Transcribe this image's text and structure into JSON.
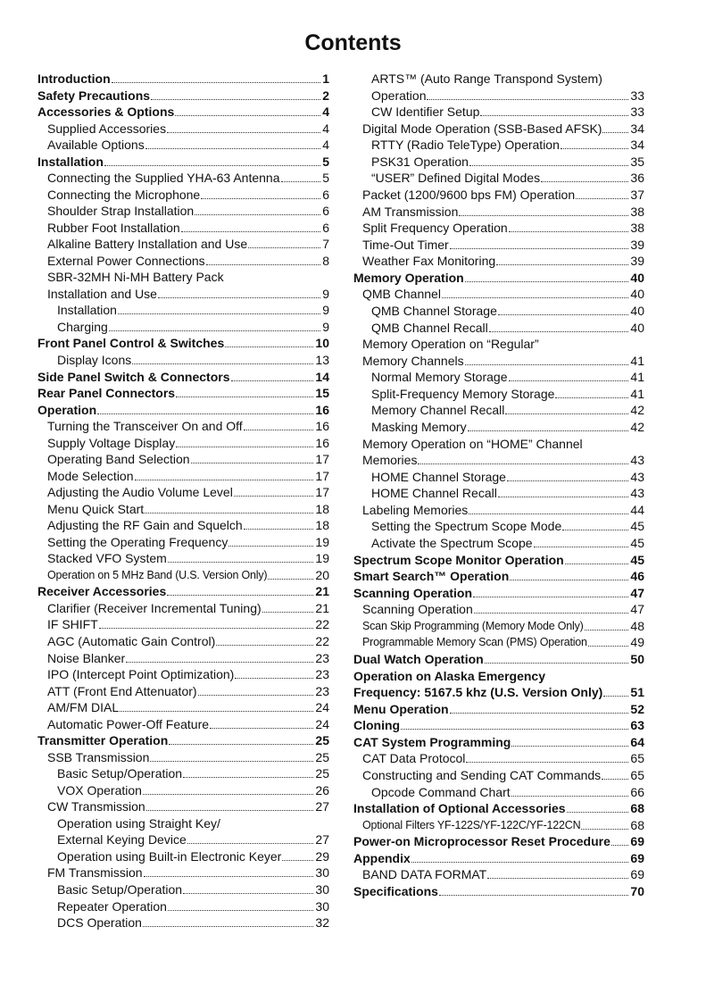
{
  "title": "Contents",
  "columns": [
    [
      {
        "text": "Introduction",
        "page": 1,
        "level": 0,
        "bold": true
      },
      {
        "text": "Safety Precautions",
        "page": 2,
        "level": 0,
        "bold": true
      },
      {
        "text": "Accessories & Options",
        "page": 4,
        "level": 0,
        "bold": true
      },
      {
        "text": "Supplied Accessories",
        "page": 4,
        "level": 1
      },
      {
        "text": "Available Options",
        "page": 4,
        "level": 1
      },
      {
        "text": "Installation",
        "page": 5,
        "level": 0,
        "bold": true
      },
      {
        "text": "Connecting the Supplied YHA-63 Antenna",
        "page": 5,
        "level": 1
      },
      {
        "text": "Connecting the Microphone",
        "page": 6,
        "level": 1
      },
      {
        "text": "Shoulder Strap Installation",
        "page": 6,
        "level": 1
      },
      {
        "text": "Rubber Foot Installation",
        "page": 6,
        "level": 1
      },
      {
        "text": "Alkaline Battery Installation and Use",
        "page": 7,
        "level": 1
      },
      {
        "text": "External Power Connections",
        "page": 8,
        "level": 1
      },
      {
        "text": "SBR-32MH Ni-MH Battery Pack",
        "level": 1
      },
      {
        "text": "Installation and Use",
        "page": 9,
        "level": 1
      },
      {
        "text": "Installation",
        "page": 9,
        "level": 2
      },
      {
        "text": "Charging",
        "page": 9,
        "level": 2
      },
      {
        "text": "Front Panel Control & Switches",
        "page": 10,
        "level": 0,
        "bold": true
      },
      {
        "text": "Display Icons",
        "page": 13,
        "level": 2
      },
      {
        "text": "Side Panel Switch & Connectors",
        "page": 14,
        "level": 0,
        "bold": true
      },
      {
        "text": "Rear Panel Connectors",
        "page": 15,
        "level": 0,
        "bold": true
      },
      {
        "text": "Operation",
        "page": 16,
        "level": 0,
        "bold": true
      },
      {
        "text": "Turning the Transceiver On and Off",
        "page": 16,
        "level": 1
      },
      {
        "text": "Supply Voltage Display",
        "page": 16,
        "level": 1
      },
      {
        "text": "Operating Band Selection",
        "page": 17,
        "level": 1
      },
      {
        "text": "Mode Selection",
        "page": 17,
        "level": 1
      },
      {
        "text": "Adjusting the Audio Volume Level",
        "page": 17,
        "level": 1
      },
      {
        "text": "Menu Quick Start",
        "page": 18,
        "level": 1
      },
      {
        "text": "Adjusting the RF Gain and Squelch",
        "page": 18,
        "level": 1
      },
      {
        "text": "Setting the Operating Frequency",
        "page": 19,
        "level": 1
      },
      {
        "text": "Stacked VFO System",
        "page": 19,
        "level": 1
      },
      {
        "text": "Operation on 5 MHz Band (U.S. Version Only)",
        "page": 20,
        "level": 1,
        "small": true
      },
      {
        "text": "Receiver Accessories",
        "page": 21,
        "level": 0,
        "bold": true
      },
      {
        "text": "Clarifier (Receiver Incremental Tuning)",
        "page": 21,
        "level": 1
      },
      {
        "text": "IF SHIFT",
        "page": 22,
        "level": 1
      },
      {
        "text": "AGC (Automatic Gain Control)",
        "page": 22,
        "level": 1
      },
      {
        "text": "Noise Blanker",
        "page": 23,
        "level": 1
      },
      {
        "text": "IPO (Intercept Point Optimization)",
        "page": 23,
        "level": 1
      },
      {
        "text": "ATT (Front End Attenuator)",
        "page": 23,
        "level": 1
      },
      {
        "text": "AM/FM DIAL",
        "page": 24,
        "level": 1
      },
      {
        "text": "Automatic Power-Off Feature",
        "page": 24,
        "level": 1
      },
      {
        "text": "Transmitter Operation",
        "page": 25,
        "level": 0,
        "bold": true
      },
      {
        "text": "SSB Transmission",
        "page": 25,
        "level": 1
      },
      {
        "text": "Basic Setup/Operation",
        "page": 25,
        "level": 2
      },
      {
        "text": "VOX Operation",
        "page": 26,
        "level": 2
      },
      {
        "text": "CW Transmission",
        "page": 27,
        "level": 1
      },
      {
        "text": "Operation using Straight Key/",
        "level": 2
      },
      {
        "text": "External Keying Device",
        "page": 27,
        "level": 2
      },
      {
        "text": "Operation using Built-in Electronic Keyer",
        "page": 29,
        "level": 2
      },
      {
        "text": "FM Transmission",
        "page": 30,
        "level": 1
      },
      {
        "text": "Basic Setup/Operation",
        "page": 30,
        "level": 2
      },
      {
        "text": "Repeater Operation",
        "page": 30,
        "level": 2
      },
      {
        "text": "DCS Operation",
        "page": 32,
        "level": 2
      }
    ],
    [
      {
        "text": "ARTS™ (Auto Range Transpond System)",
        "level": 2
      },
      {
        "text": "Operation",
        "page": 33,
        "level": 2
      },
      {
        "text": "CW Identifier Setup",
        "page": 33,
        "level": 2
      },
      {
        "text": "Digital Mode Operation (SSB-Based AFSK)",
        "page": 34,
        "level": 1
      },
      {
        "text": "RTTY (Radio TeleType) Operation",
        "page": 34,
        "level": 2
      },
      {
        "text": "PSK31 Operation",
        "page": 35,
        "level": 2
      },
      {
        "text": "“USER” Defined Digital Modes",
        "page": 36,
        "level": 2
      },
      {
        "text": "Packet (1200/9600 bps FM) Operation",
        "page": 37,
        "level": 1
      },
      {
        "text": "AM Transmission",
        "page": 38,
        "level": 1
      },
      {
        "text": "Split Frequency Operation",
        "page": 38,
        "level": 1
      },
      {
        "text": "Time-Out Timer",
        "page": 39,
        "level": 1
      },
      {
        "text": "Weather Fax Monitoring",
        "page": 39,
        "level": 1
      },
      {
        "text": "Memory Operation",
        "page": 40,
        "level": 0,
        "bold": true
      },
      {
        "text": "QMB Channel",
        "page": 40,
        "level": 1
      },
      {
        "text": "QMB Channel Storage",
        "page": 40,
        "level": 2
      },
      {
        "text": "QMB Channel Recall",
        "page": 40,
        "level": 2
      },
      {
        "text": "Memory Operation on “Regular”",
        "level": 1
      },
      {
        "text": "Memory Channels",
        "page": 41,
        "level": 1
      },
      {
        "text": "Normal Memory Storage",
        "page": 41,
        "level": 2
      },
      {
        "text": "Split-Frequency Memory Storage",
        "page": 41,
        "level": 2
      },
      {
        "text": "Memory Channel Recall",
        "page": 42,
        "level": 2
      },
      {
        "text": "Masking Memory",
        "page": 42,
        "level": 2
      },
      {
        "text": "Memory Operation on “HOME” Channel",
        "level": 1
      },
      {
        "text": "Memories",
        "page": 43,
        "level": 1
      },
      {
        "text": "HOME Channel Storage",
        "page": 43,
        "level": 2
      },
      {
        "text": "HOME Channel Recall",
        "page": 43,
        "level": 2
      },
      {
        "text": "Labeling Memories",
        "page": 44,
        "level": 1
      },
      {
        "text": "Setting the Spectrum Scope Mode",
        "page": 45,
        "level": 2
      },
      {
        "text": "Activate the Spectrum Scope",
        "page": 45,
        "level": 2
      },
      {
        "text": "Spectrum Scope Monitor Operation",
        "page": 45,
        "level": 0,
        "bold": true
      },
      {
        "text": "Smart Search™ Operation",
        "page": 46,
        "level": 0,
        "bold": true
      },
      {
        "text": "Scanning Operation",
        "page": 47,
        "level": 0,
        "bold": true
      },
      {
        "text": "Scanning Operation",
        "page": 47,
        "level": 1
      },
      {
        "text": "Scan Skip Programming (Memory Mode Only)",
        "page": 48,
        "level": 1,
        "small": true
      },
      {
        "text": "Programmable Memory Scan (PMS) Operation",
        "page": 49,
        "level": 1,
        "small": true
      },
      {
        "text": "Dual Watch Operation",
        "page": 50,
        "level": 0,
        "bold": true
      },
      {
        "text": "Operation on Alaska Emergency",
        "level": 0,
        "bold": true
      },
      {
        "text": "Frequency: 5167.5 khz (U.S. Version Only)",
        "page": 51,
        "level": 0,
        "bold": true
      },
      {
        "text": "Menu Operation",
        "page": 52,
        "level": 0,
        "bold": true
      },
      {
        "text": "Cloning",
        "page": 63,
        "level": 0,
        "bold": true
      },
      {
        "text": "CAT System Programming",
        "page": 64,
        "level": 0,
        "bold": true
      },
      {
        "text": "CAT Data Protocol",
        "page": 65,
        "level": 1
      },
      {
        "text": "Constructing and Sending CAT Commands",
        "page": 65,
        "level": 1
      },
      {
        "text": "Opcode Command Chart",
        "page": 66,
        "level": 2
      },
      {
        "text": "Installation of Optional Accessories",
        "page": 68,
        "level": 0,
        "bold": true
      },
      {
        "text": "Optional Filters YF-122S/YF-122C/YF-122CN",
        "page": 68,
        "level": 1,
        "small": true
      },
      {
        "text": "Power-on Microprocessor Reset Procedure",
        "page": 69,
        "level": 0,
        "bold": true
      },
      {
        "text": "Appendix",
        "page": 69,
        "level": 0,
        "bold": true
      },
      {
        "text": "BAND DATA FORMAT",
        "page": 69,
        "level": 1
      },
      {
        "text": "Specifications",
        "page": 70,
        "level": 0,
        "bold": true
      }
    ]
  ]
}
